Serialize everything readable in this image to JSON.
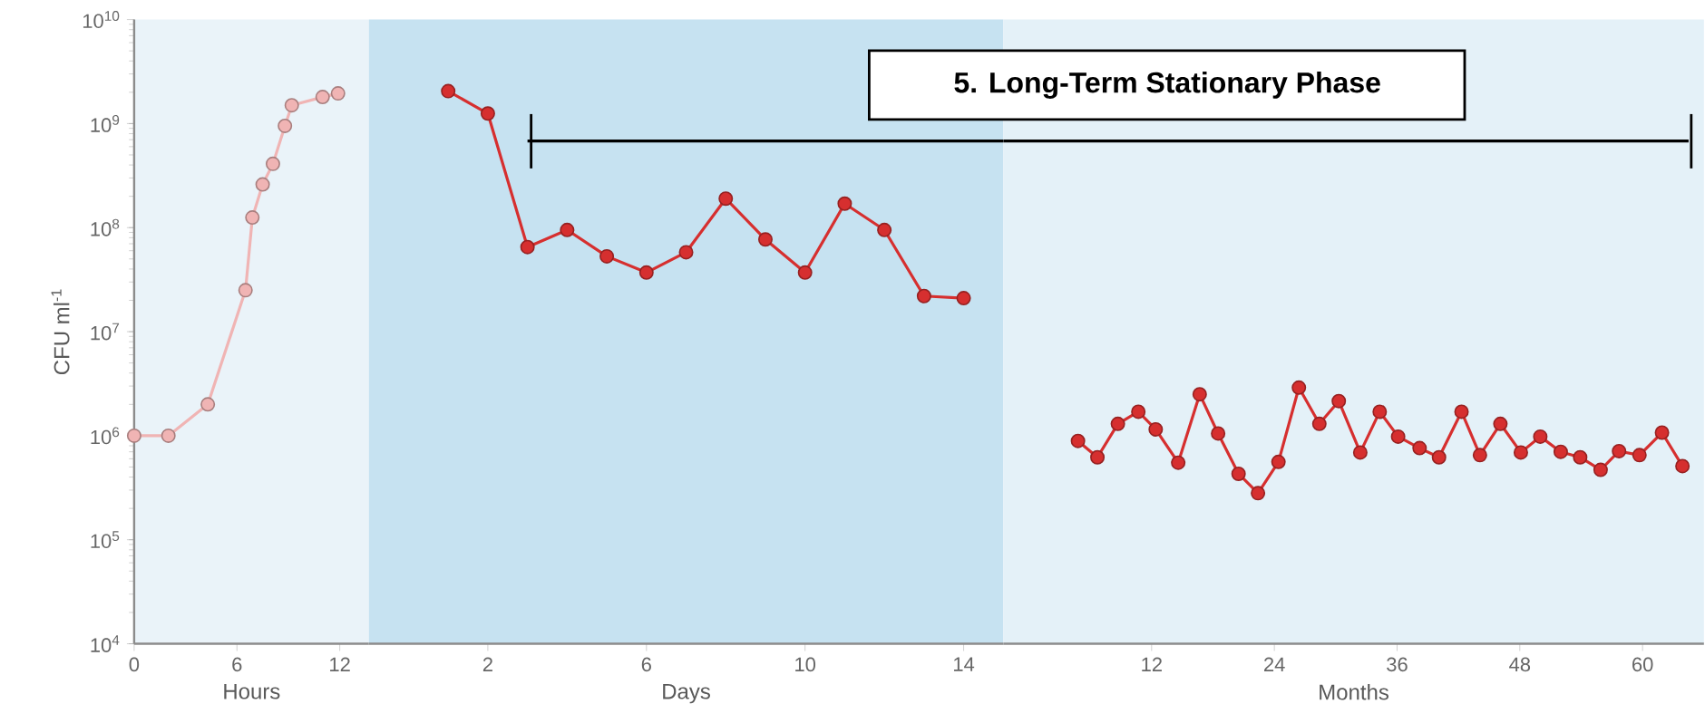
{
  "chart_data": [
    {
      "type": "line",
      "xlabel": "Hours",
      "ylabel": "CFU ml$^{-1}$",
      "x": [
        0,
        2,
        4.3,
        6.5,
        6.9,
        7.5,
        8.1,
        8.8,
        9.2,
        11,
        11.9
      ],
      "series": [
        {
          "color": "#f0b4b4",
          "values": [
            1000000,
            1000000,
            2000000,
            25000000,
            125000000,
            260000000,
            410000000,
            950000000,
            1500000000,
            1800000000,
            1950000000
          ]
        }
      ],
      "xlim": [
        0,
        13.7
      ],
      "xticks": [
        0,
        6,
        12
      ],
      "ylim": [
        10000,
        10000000000
      ],
      "yticks": [
        {
          "value": 10000,
          "label": "10$^{4}$"
        },
        {
          "value": 100000,
          "label": "10$^{5}$"
        },
        {
          "value": 1000000,
          "label": "10$^{6}$"
        },
        {
          "value": 10000000,
          "label": "10$^{7}$"
        },
        {
          "value": 100000000,
          "label": "10$^{8}$"
        },
        {
          "value": 1000000000,
          "label": "10$^{9}$"
        },
        {
          "value": 10000000000,
          "label": "10$^{10}$"
        }
      ],
      "log": "y",
      "marker": "circle"
    },
    {
      "type": "line",
      "xlabel": "Days",
      "x": [
        1,
        2,
        3,
        4,
        5,
        6,
        7,
        8,
        9,
        10,
        11,
        12,
        13,
        14
      ],
      "series": [
        {
          "color": "#d62f2f",
          "values": [
            2050000000,
            1250000000,
            65000000,
            95000000,
            53000000,
            37000000,
            58000000,
            190000000,
            77000000,
            37000000,
            170000000,
            95000000,
            22000000,
            21000000
          ]
        },
        {
          "color": "#000000",
          "marker": "none",
          "x": [
            3,
            15
          ],
          "values": [
            680000000,
            680000000
          ]
        }
      ],
      "xlim": [
        -1,
        15
      ],
      "xticks": [
        2,
        6,
        10,
        14
      ],
      "ylim": [
        10000,
        10000000000
      ],
      "log": "y",
      "marker": "circle",
      "tick_labels": "x",
      "annotations": [
        "5. Long-Term Stationary Phase"
      ]
    },
    {
      "type": "line",
      "xlabel": "Months",
      "x": [
        4.8,
        6.7,
        8.7,
        10.7,
        12.4,
        14.6,
        16.7,
        18.5,
        20.5,
        22.4,
        24.4,
        26.4,
        28.4,
        30.3,
        32.4,
        34.3,
        36.1,
        38.2,
        40.1,
        42.3,
        44.1,
        46.1,
        48.1,
        50,
        52,
        53.9,
        55.9,
        57.7,
        59.7,
        61.9,
        63.9
      ],
      "series": [
        {
          "color": "#d62f2f",
          "values": [
            890000,
            620000,
            1300000,
            1700000,
            1150000,
            550000,
            2500000,
            1050000,
            430000,
            280000,
            560000,
            2900000,
            1300000,
            2150000,
            690000,
            1700000,
            980000,
            760000,
            620000,
            1700000,
            650000,
            1300000,
            690000,
            980000,
            700000,
            620000,
            470000,
            710000,
            650000,
            1070000,
            510000
          ]
        },
        {
          "color": "#000000",
          "marker": "none",
          "x": [
            -2.5,
            64.5
          ],
          "values": [
            680000000,
            680000000
          ]
        }
      ],
      "xlim": [
        -2.5,
        66
      ],
      "xticks": [
        12,
        24,
        36,
        48,
        60
      ],
      "ylim": [
        10000,
        10000000000
      ],
      "log": "y",
      "marker": "circle",
      "tick_labels": "x"
    }
  ]
}
